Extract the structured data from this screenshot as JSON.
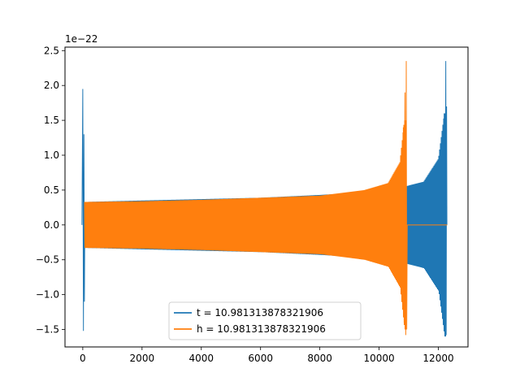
{
  "chart_data": {
    "type": "line",
    "title": "",
    "xlabel": "",
    "ylabel": "",
    "y_offset_label": "1e−22",
    "xlim": [
      -600,
      13000
    ],
    "ylim": [
      -1.75,
      2.55
    ],
    "x_ticks": [
      0,
      2000,
      4000,
      6000,
      8000,
      10000,
      12000
    ],
    "x_tick_labels": [
      "0",
      "2000",
      "4000",
      "6000",
      "8000",
      "10000",
      "12000"
    ],
    "y_ticks": [
      -1.5,
      -1.0,
      -0.5,
      0.0,
      0.5,
      1.0,
      1.5,
      2.0,
      2.5
    ],
    "y_tick_labels": [
      "−1.5",
      "−1.0",
      "−0.5",
      "0.0",
      "0.5",
      "1.0",
      "1.5",
      "2.0",
      "2.5"
    ],
    "grid": false,
    "legend_position": "lower-center",
    "series": [
      {
        "name": "t = 10.981313878321906",
        "color": "#1f77b4",
        "description_points": {
          "x_start": 0,
          "x_end": 12300,
          "spike_near_zero": {
            "x": 0,
            "max": 1.95,
            "min": -1.52
          },
          "chirp_tail": {
            "x_peak": 12250,
            "max": 2.35,
            "min": -1.58
          },
          "envelope": [
            {
              "x": 100,
              "amp": 0.33
            },
            {
              "x": 2000,
              "amp": 0.35
            },
            {
              "x": 4000,
              "amp": 0.37
            },
            {
              "x": 6000,
              "amp": 0.39
            },
            {
              "x": 8000,
              "amp": 0.43
            },
            {
              "x": 10000,
              "amp": 0.48
            },
            {
              "x": 10950,
              "amp": 0.56
            },
            {
              "x": 11500,
              "amp": 0.62
            },
            {
              "x": 12000,
              "amp": 0.95
            },
            {
              "x": 12200,
              "amp": 1.6
            }
          ]
        }
      },
      {
        "name": "h = 10.981313878321906",
        "color": "#ff7f0e",
        "description_points": {
          "x_start": 0,
          "x_end": 12300,
          "chirp_peak": {
            "x": 10900,
            "max": 2.35,
            "min": -1.58
          },
          "flat_after": {
            "x_from": 10950,
            "x_to": 12300,
            "value": 0.0
          },
          "envelope": [
            {
              "x": 100,
              "amp": 0.33
            },
            {
              "x": 2000,
              "amp": 0.34
            },
            {
              "x": 4000,
              "amp": 0.36
            },
            {
              "x": 6000,
              "amp": 0.39
            },
            {
              "x": 8000,
              "amp": 0.42
            },
            {
              "x": 9500,
              "amp": 0.5
            },
            {
              "x": 10300,
              "amp": 0.6
            },
            {
              "x": 10700,
              "amp": 0.9
            },
            {
              "x": 10850,
              "amp": 1.5
            }
          ]
        }
      }
    ]
  }
}
